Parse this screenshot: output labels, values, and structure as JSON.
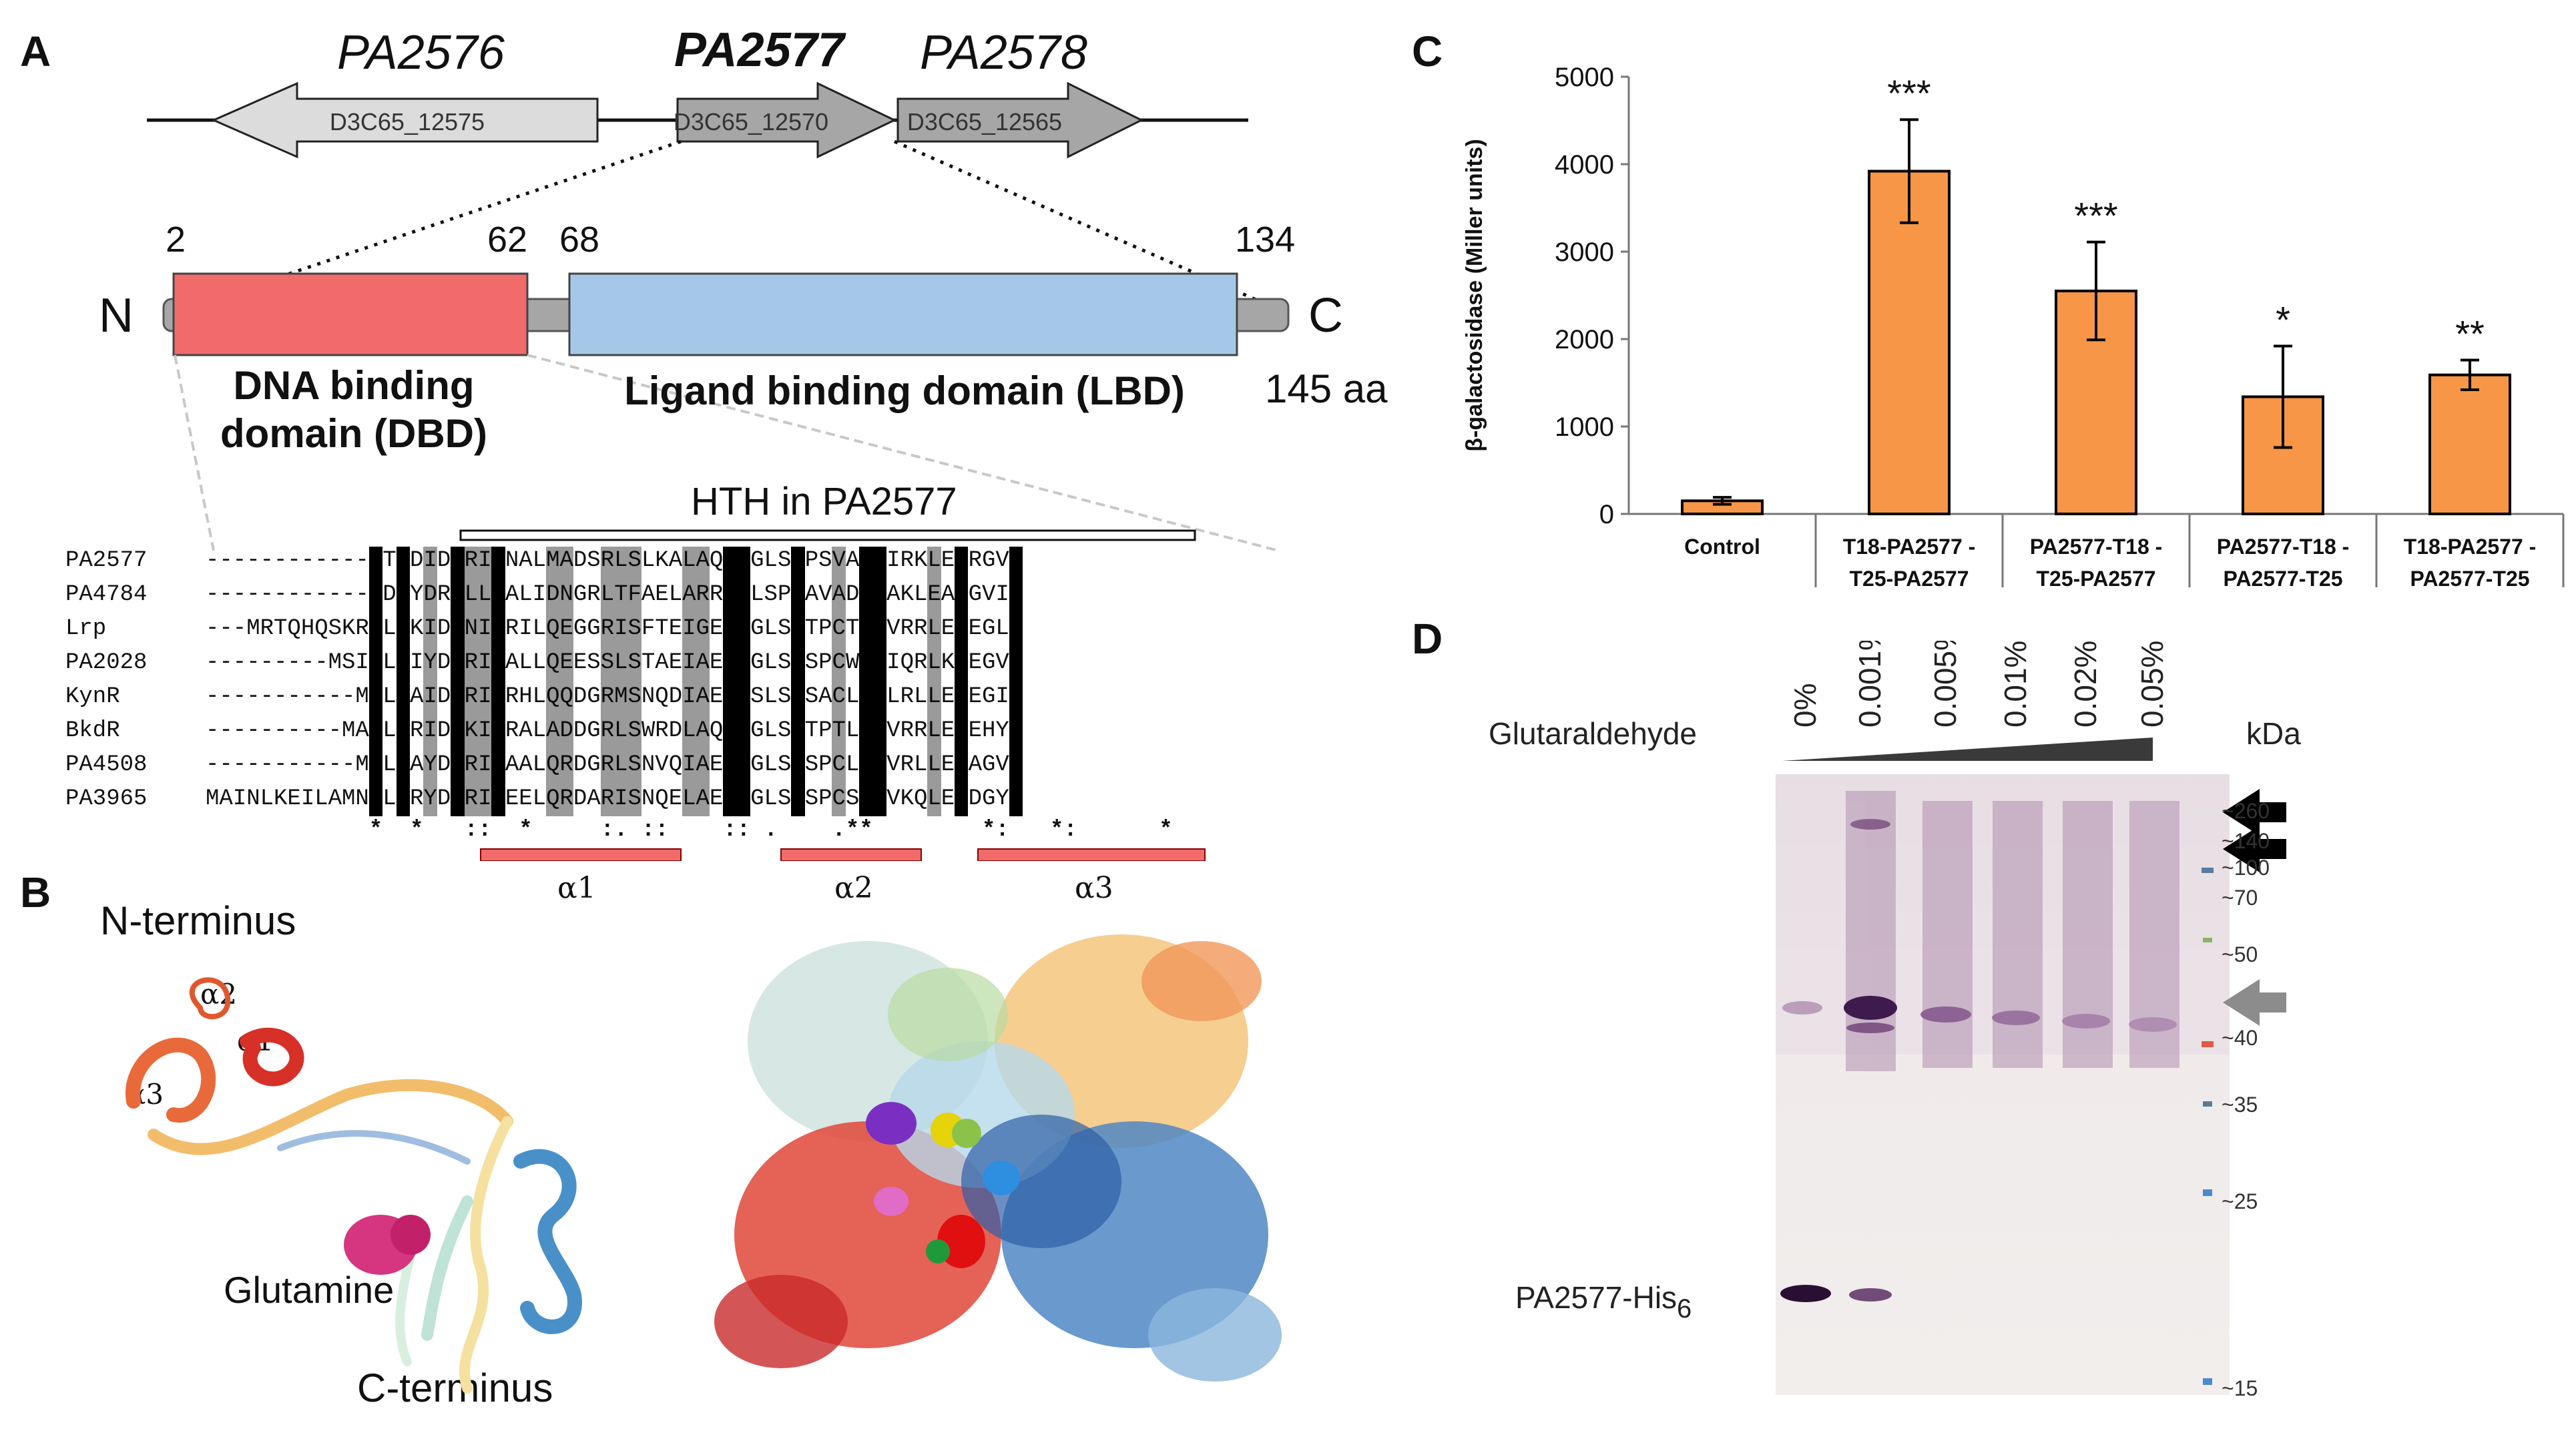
{
  "panels": {
    "a": "A",
    "b": "B",
    "c": "C",
    "d": "D"
  },
  "panel_a": {
    "genes": [
      "PA2576",
      "PA2577",
      "PA2578"
    ],
    "loci": [
      "D3C65_12575",
      "D3C65_12570",
      "D3C65_12565"
    ],
    "positions": {
      "p2": "2",
      "p62": "62",
      "p68": "68",
      "p134": "134"
    },
    "n_term": "N",
    "c_term": "C",
    "length": "145 aa",
    "dbd": "DNA binding domain (DBD)",
    "lbd": "Ligand binding domain (LBD)",
    "hth": "HTH in PA2577",
    "alignment": [
      {
        "name": "PA2577",
        "seq": "------------MTDDIDQRILNALMADSRLSLKALAQVSGLSAPSVAERIRKLEERGVI"
      },
      {
        "name": "PA4784",
        "seq": "------------MDKYDRALLAALIDNGRLTFAELARRINLSPPAVADRVAKLEAEGVI"
      },
      {
        "name": "Lrp",
        "seq": "---MRTQHQSKRELDKIDRNILRILQEGGRISFTEIGERVGLSTTPCTERVRRLEREGLI"
      },
      {
        "name": "PA2028",
        "seq": "---------MSIPLDIYDQRILALLQEESSLSTAEIAERIGLSQSPCWRRIQRLKEEGVI"
      },
      {
        "name": "KynR",
        "seq": "-----------MSLDAIDLRILRHLQQDGRMSNQDIAEKVSLSPSACLRRLRLLESEGII"
      },
      {
        "name": "BkdR",
        "seq": "----------MAELDRIDLKILRALADDGRLSWRDLAQKVGLSLTPTLRRVRRLEEEHYI"
      },
      {
        "name": "PA4508",
        "seq": "-----------MKLDAYDHRILAALQRDGRLSNVQIAEEIGLSPSPCLRRVRLLEEAGVI"
      },
      {
        "name": "PA3965",
        "seq": "MAINLKEILAMNKLDRYDLRILEELQRDARISNQELAERIGLSPSPCSRRVKQLEDDGYI"
      }
    ],
    "consensus": "*  *   ::  *     :. ::    :: .    .**        *:   *:      *",
    "helices": [
      "α1",
      "α2",
      "α3"
    ]
  },
  "panel_b": {
    "labels": {
      "n_term": "N-terminus",
      "c_term": "C-terminus",
      "ligand": "Glutamine",
      "a1": "α1",
      "a2": "α2",
      "a3": "α3"
    }
  },
  "chart_data": {
    "type": "bar",
    "title": "",
    "ylabel": "β-galactosidase (Miller units)",
    "xlabel": "",
    "ylim": [
      0,
      5000
    ],
    "yticks": [
      0,
      1000,
      2000,
      3000,
      4000,
      5000
    ],
    "categories": [
      "Control",
      "T18-PA2577 - T25-PA2577",
      "PA2577-T18 - T25-PA2577",
      "PA2577-T18 - PA2577-T25",
      "T18-PA2577 - PA2577-T25"
    ],
    "category_lines": [
      [
        "Control"
      ],
      [
        "T18-PA2577 -",
        "T25-PA2577"
      ],
      [
        "PA2577-T18 -",
        "T25-PA2577"
      ],
      [
        "PA2577-T18 -",
        "PA2577-T25"
      ],
      [
        "T18-PA2577 -",
        "PA2577-T25"
      ]
    ],
    "values": [
      150,
      3920,
      2550,
      1340,
      1590
    ],
    "errors": [
      40,
      590,
      560,
      580,
      170
    ],
    "significance": [
      "",
      "***",
      "***",
      "*",
      "**"
    ],
    "bar_color": "#F79646",
    "grid": false
  },
  "panel_d": {
    "reagent": "Glutaraldehyde",
    "concentrations": [
      "0%",
      "0.001%",
      "0.005%",
      "0.01%",
      "0.02%",
      "0.05%"
    ],
    "unit": "kDa",
    "markers": [
      "~260",
      "~140",
      "~100",
      "~70",
      "~50",
      "~40",
      "~35",
      "~25",
      "~15"
    ],
    "protein_label": "PA2577-His",
    "protein_sub": "6"
  }
}
